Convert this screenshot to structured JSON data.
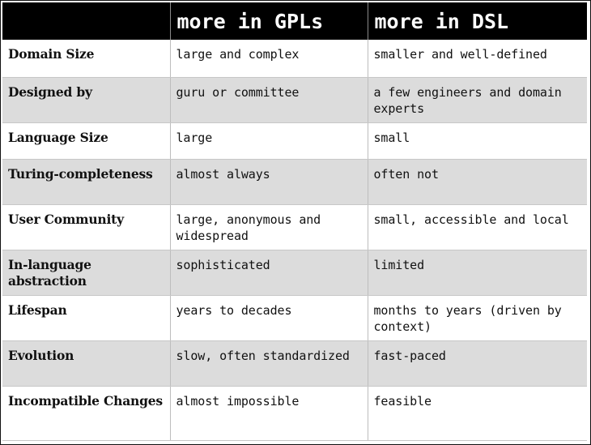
{
  "header": {
    "col0": "",
    "col1": "more in GPLs",
    "col2": "more in DSL"
  },
  "rows": [
    {
      "label": "Domain Size",
      "gpl": "large and complex",
      "dsl": "smaller and well-defined"
    },
    {
      "label": "Designed by",
      "gpl": "guru or committee",
      "dsl": "a few engineers and domain experts"
    },
    {
      "label": "Language Size",
      "gpl": "large",
      "dsl": "small"
    },
    {
      "label": "Turing-completeness",
      "gpl": "almost always",
      "dsl": "often not"
    },
    {
      "label": "User Community",
      "gpl": "large, anonymous and widespread",
      "dsl": "small, accessible and local"
    },
    {
      "label": "In-language abstraction",
      "gpl": "sophisticated",
      "dsl": "limited"
    },
    {
      "label": "Lifespan",
      "gpl": "years to decades",
      "dsl": "months to years (driven by context)"
    },
    {
      "label": "Evolution",
      "gpl": "slow, often standardized",
      "dsl": "fast-paced"
    },
    {
      "label": "Incompatible Changes",
      "gpl": "almost impossible",
      "dsl": "feasible"
    }
  ]
}
